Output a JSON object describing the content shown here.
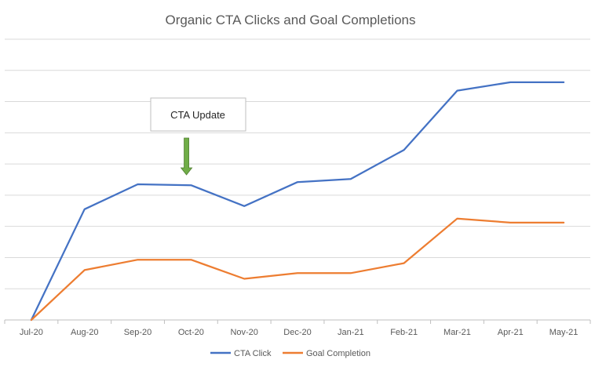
{
  "chart_data": {
    "type": "line",
    "title": "Organic CTA Clicks and Goal Completions",
    "xlabel": "",
    "ylabel": "",
    "categories": [
      "Jul-20",
      "Aug-20",
      "Sep-20",
      "Oct-20",
      "Nov-20",
      "Dec-20",
      "Jan-21",
      "Feb-21",
      "Mar-21",
      "Apr-21",
      "May-21"
    ],
    "series": [
      {
        "name": "CTA Click",
        "color": "#4472c4",
        "values": [
          0,
          35.5,
          43.5,
          43.2,
          36.5,
          44.2,
          45.2,
          54.5,
          73.5,
          76.2,
          76.2
        ]
      },
      {
        "name": "Goal Completion",
        "color": "#ed7d31",
        "values": [
          0,
          16,
          19.3,
          19.3,
          13.2,
          15,
          15,
          18.2,
          32.5,
          31.2,
          31.2
        ]
      }
    ],
    "ylim": [
      0,
      90
    ],
    "y_gridlines": [
      0,
      10,
      20,
      30,
      40,
      50,
      60,
      70,
      80,
      90
    ],
    "y_tick_labels_shown": false,
    "grid": true,
    "legend": "bottom",
    "annotation": {
      "text": "CTA Update",
      "category": "Oct-20",
      "arrow_color": "#70ad47"
    }
  }
}
